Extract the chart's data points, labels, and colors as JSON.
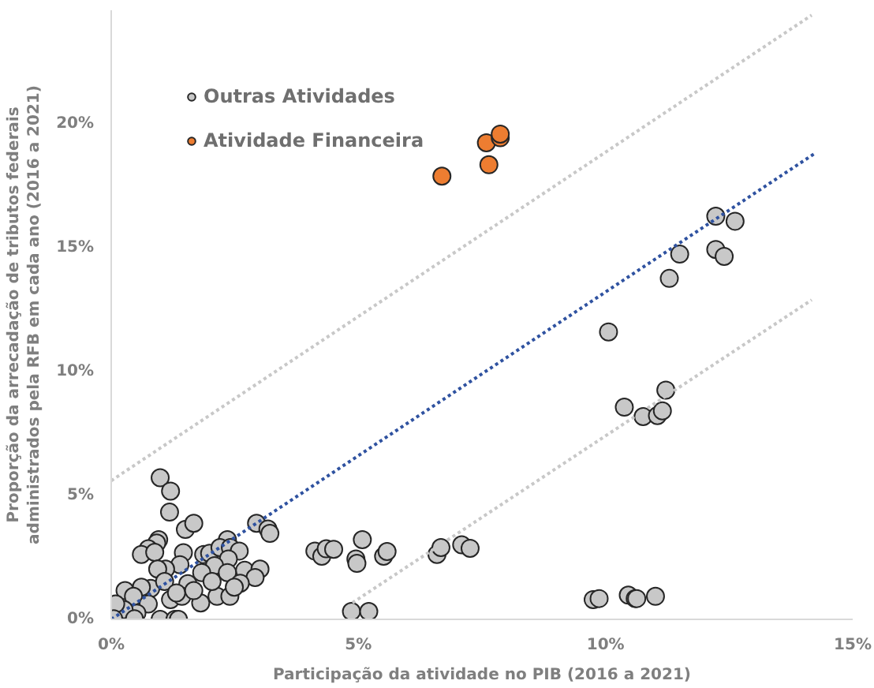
{
  "chart_data": {
    "type": "scatter",
    "xlabel": "Participação da atividade no PIB (2016 a 2021)",
    "ylabel": "Proporção da arrecadação de tributos federais administrados pela RFB em cada ano (2016 a 2021)",
    "xlim": [
      0,
      15
    ],
    "ylim": [
      0,
      24.6
    ],
    "xticks": [
      {
        "value": 0,
        "label": "0%"
      },
      {
        "value": 5,
        "label": "5%"
      },
      {
        "value": 10,
        "label": "10%"
      },
      {
        "value": 15,
        "label": "15%"
      }
    ],
    "yticks": [
      {
        "value": 0,
        "label": "0%"
      },
      {
        "value": 5,
        "label": "5%"
      },
      {
        "value": 10,
        "label": "10%"
      },
      {
        "value": 15,
        "label": "15%"
      },
      {
        "value": 20,
        "label": "20%"
      }
    ],
    "grid": false,
    "legend": "top left",
    "series": [
      {
        "name": "Outras Atividades",
        "color": "#c8c8c8",
        "marker": "circle",
        "x": [
          12.23,
          12.62,
          11.5,
          12.23,
          12.4,
          11.29,
          10.06,
          11.22,
          10.38,
          10.76,
          11.05,
          11.15,
          9.75,
          9.87,
          10.46,
          10.6,
          10.63,
          11.01,
          4.12,
          4.26,
          4.35,
          4.5,
          4.95,
          4.97,
          5.08,
          5.51,
          5.58,
          4.86,
          5.21,
          6.59,
          6.67,
          7.09,
          7.26,
          0.99,
          1.2,
          1.18,
          1.5,
          1.67,
          2.94,
          3.17,
          3.21,
          2.35,
          0.96,
          0.92,
          0.75,
          0.61,
          0.88,
          1.46,
          1.87,
          1.99,
          2.2,
          2.41,
          2.59,
          2.37,
          1.39,
          2.09,
          1.1,
          0.94,
          1.83,
          2.35,
          2.7,
          3.01,
          2.91,
          2.61,
          1.55,
          0.8,
          0.61,
          0.28,
          0.45,
          0.75,
          1.2,
          1.43,
          1.81,
          2.14,
          2.4,
          0.52,
          0.26,
          0.47,
          0.99,
          1.29,
          1.36,
          0.09,
          0.05,
          1.08,
          1.32,
          1.67,
          2.04,
          2.49
        ],
        "values": [
          16.28,
          16.08,
          14.75,
          14.94,
          14.66,
          13.77,
          11.61,
          9.26,
          8.57,
          8.19,
          8.23,
          8.42,
          0.8,
          0.84,
          0.98,
          0.84,
          0.84,
          0.93,
          2.76,
          2.55,
          2.85,
          2.83,
          2.44,
          2.26,
          3.22,
          2.55,
          2.74,
          0.32,
          0.32,
          2.62,
          2.9,
          3.01,
          2.87,
          5.72,
          5.18,
          4.33,
          3.63,
          3.88,
          3.88,
          3.65,
          3.47,
          3.22,
          3.22,
          3.08,
          2.85,
          2.62,
          2.71,
          2.69,
          2.62,
          2.67,
          2.9,
          2.9,
          2.76,
          2.44,
          2.21,
          2.17,
          2.03,
          2.03,
          1.89,
          1.89,
          1.98,
          2.03,
          1.69,
          1.46,
          1.44,
          1.25,
          1.3,
          1.16,
          0.93,
          0.62,
          0.8,
          0.93,
          0.66,
          0.93,
          0.93,
          0.25,
          0.39,
          0.02,
          0,
          0,
          0,
          0.62,
          0.02,
          1.53,
          1.07,
          1.16,
          1.53,
          1.3
        ]
      },
      {
        "name": "Atividade Financeira",
        "color": "#ed7d31",
        "marker": "circle",
        "x": [
          6.69,
          7.59,
          7.64,
          7.87,
          7.87
        ],
        "values": [
          17.9,
          19.25,
          18.36,
          19.45,
          19.6
        ]
      },
      {
        "type": "line",
        "color": "#2f52a0",
        "line_style": "dotted",
        "marker": "none",
        "x": [
          0,
          14.22
        ],
        "values": [
          0,
          18.8
        ]
      },
      {
        "type": "line",
        "color": "#c8c8c8",
        "line_style": "dotted",
        "marker": "none",
        "x": [
          0,
          14.17
        ],
        "values": [
          5.6,
          24.4
        ]
      },
      {
        "type": "line",
        "color": "#c8c8c8",
        "line_style": "dotted",
        "marker": "none",
        "x": [
          4.88,
          14.17
        ],
        "values": [
          0.67,
          12.9
        ]
      }
    ]
  }
}
